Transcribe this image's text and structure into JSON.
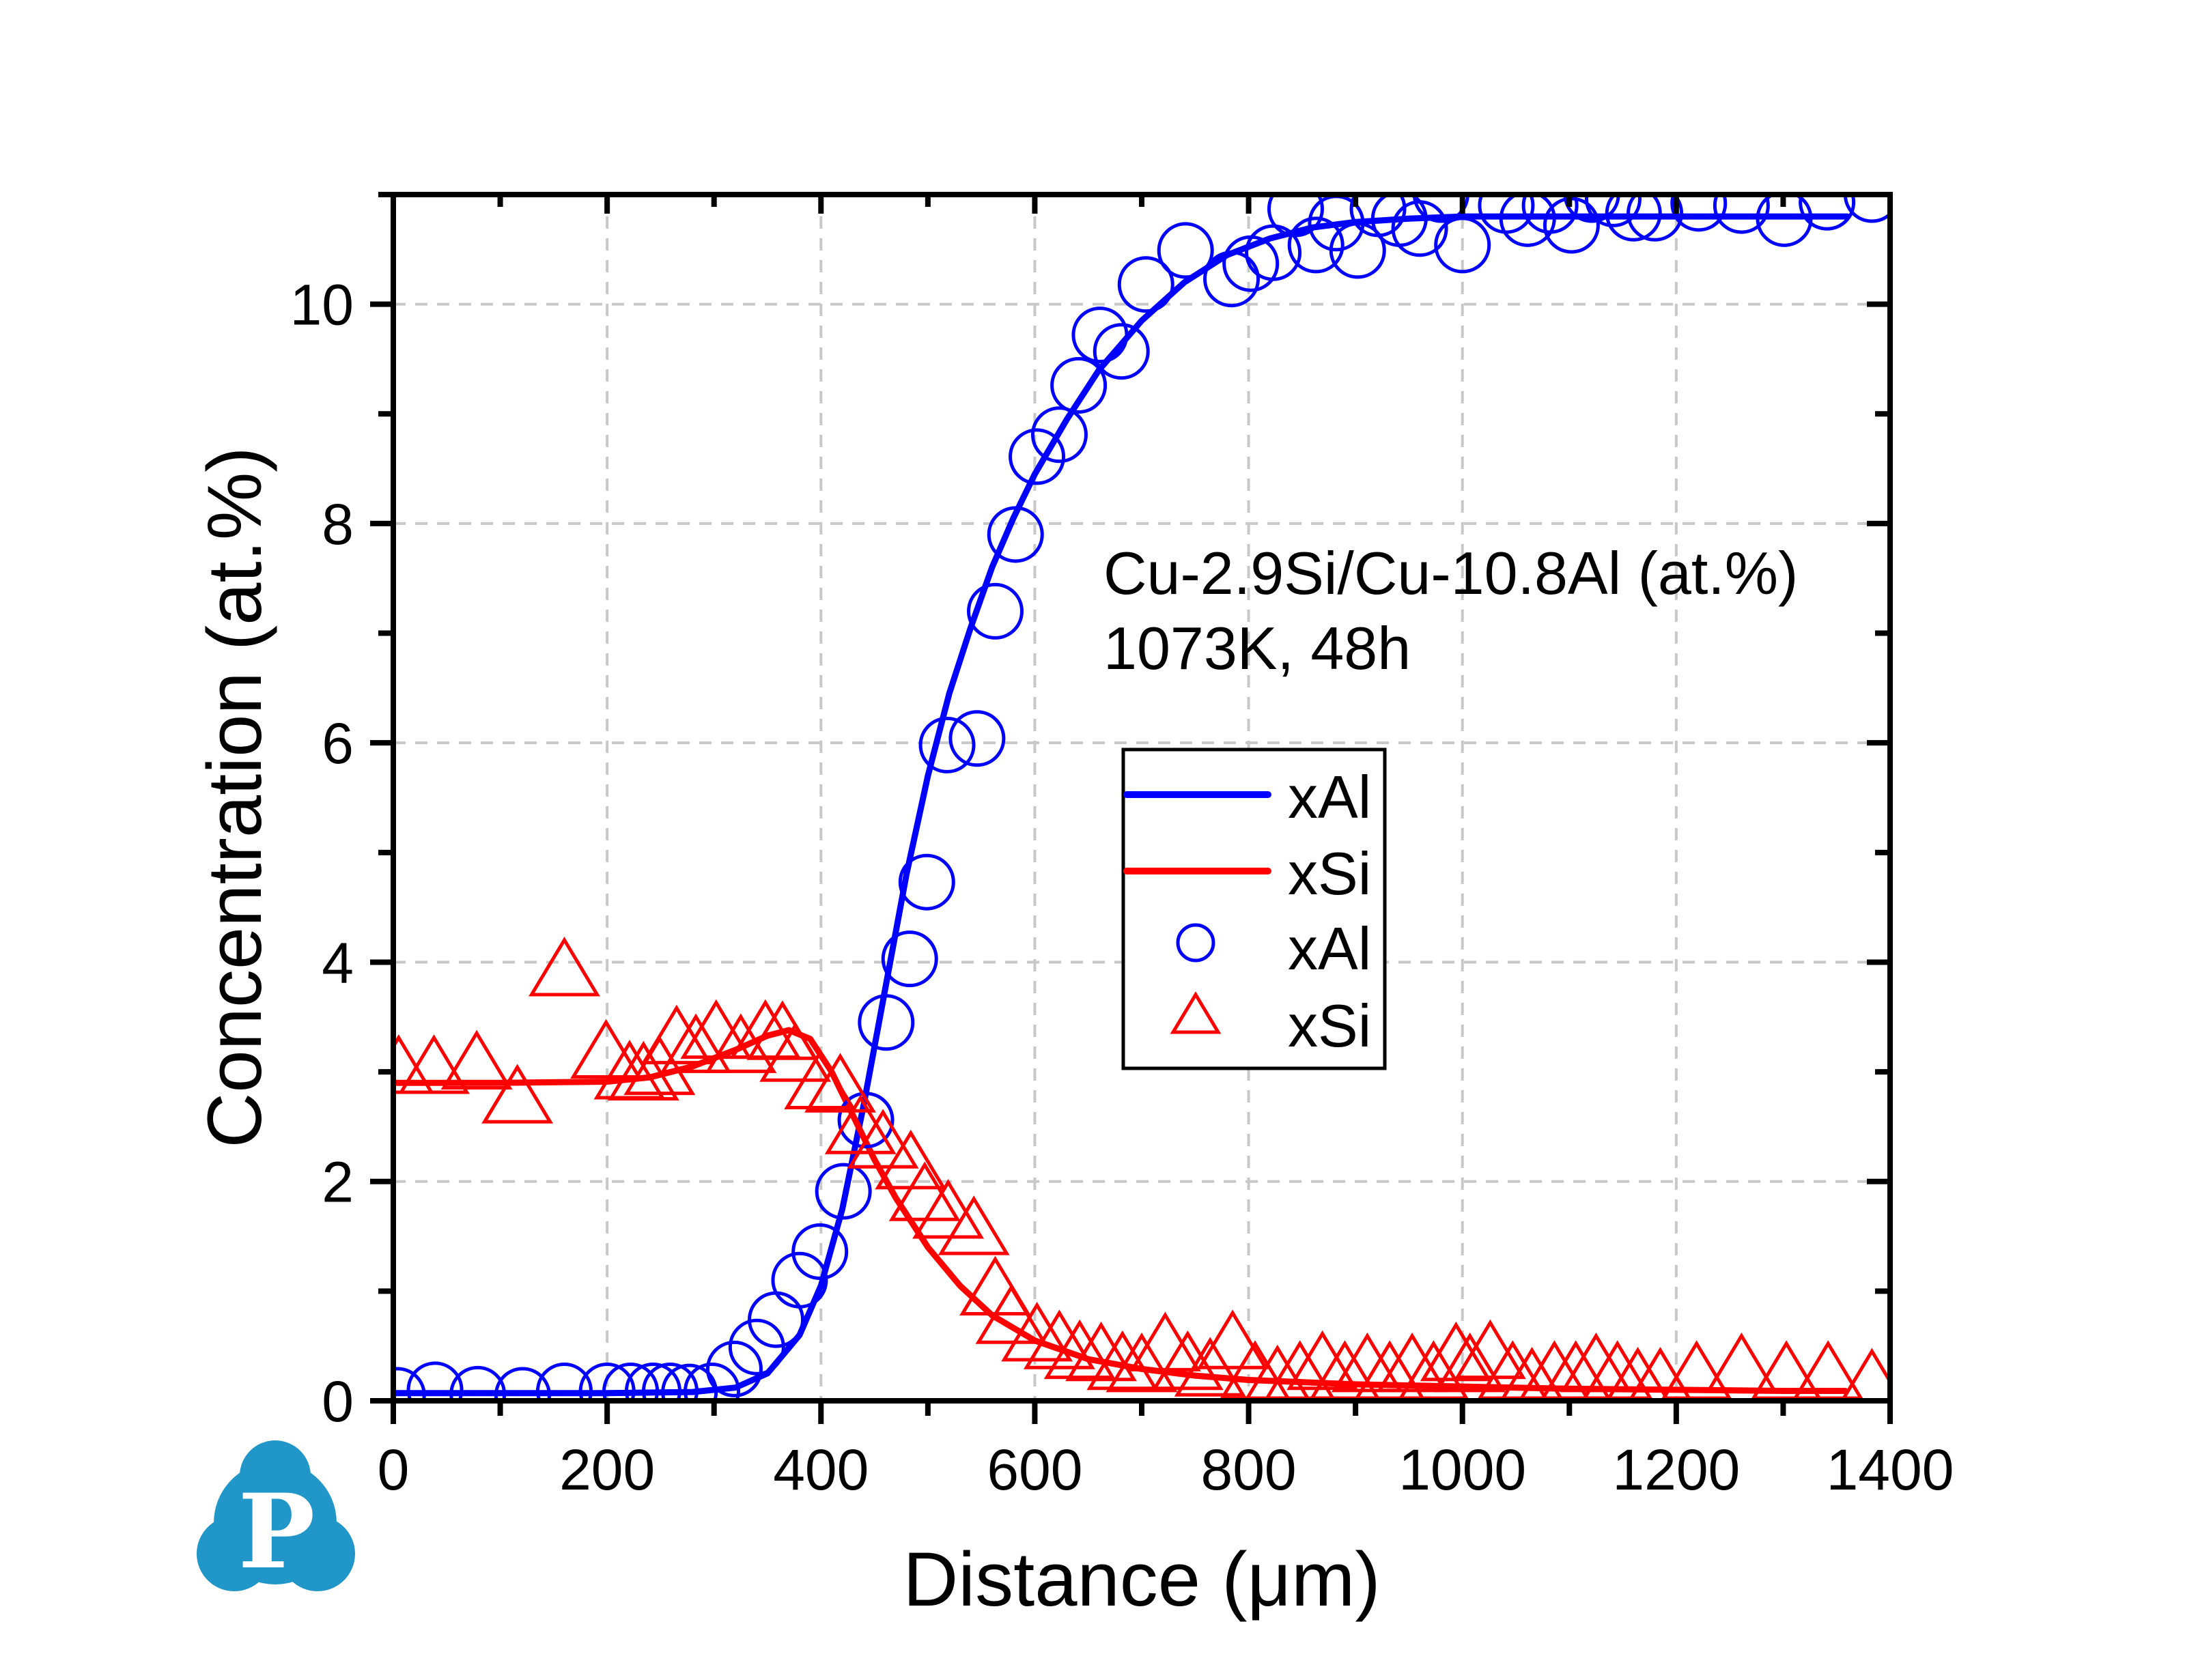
{
  "chart_data": {
    "type": "scatter",
    "title": "",
    "xlabel": "Distance (μm)",
    "ylabel": "Concentration (at.%)",
    "xlim": [
      0,
      1400
    ],
    "ylim": [
      0,
      11
    ],
    "x_major_ticks": [
      0,
      200,
      400,
      600,
      800,
      1000,
      1200,
      1400
    ],
    "x_minor_step": 100,
    "y_major_ticks": [
      0,
      2,
      4,
      6,
      8,
      10
    ],
    "y_minor_step": 1,
    "x_tick_labels": [
      "0",
      "200",
      "400",
      "600",
      "800",
      "1000",
      "1200",
      "1400"
    ],
    "y_tick_labels": [
      "0",
      "2",
      "4",
      "6",
      "8",
      "10"
    ],
    "grid": true,
    "legend_placement": "center-right",
    "annotation": [
      "Cu-2.9Si/Cu-10.8Al (at.%)",
      "1073K, 48h"
    ],
    "series": [
      {
        "name": "xAl",
        "kind": "line",
        "color": "#0000ff",
        "x": [
          0,
          100,
          200,
          280,
          320,
          350,
          380,
          400,
          420,
          440,
          460,
          480,
          500,
          520,
          540,
          560,
          580,
          600,
          630,
          660,
          700,
          740,
          780,
          820,
          860,
          900,
          950,
          1000,
          1100,
          1200,
          1300,
          1360
        ],
        "y": [
          0.07,
          0.07,
          0.07,
          0.08,
          0.12,
          0.25,
          0.6,
          1.05,
          1.75,
          2.7,
          3.75,
          4.8,
          5.7,
          6.45,
          7.05,
          7.6,
          8.05,
          8.45,
          8.95,
          9.4,
          9.85,
          10.2,
          10.45,
          10.6,
          10.7,
          10.75,
          10.78,
          10.8,
          10.8,
          10.8,
          10.8,
          10.8
        ]
      },
      {
        "name": "xSi",
        "kind": "line",
        "color": "#ff0000",
        "x": [
          0,
          100,
          200,
          240,
          280,
          320,
          350,
          370,
          390,
          410,
          430,
          450,
          470,
          500,
          530,
          560,
          600,
          650,
          700,
          750,
          800,
          900,
          1000,
          1100,
          1200,
          1300,
          1358
        ],
        "y": [
          2.9,
          2.9,
          2.91,
          2.95,
          3.05,
          3.2,
          3.33,
          3.38,
          3.3,
          3.0,
          2.6,
          2.2,
          1.85,
          1.4,
          1.05,
          0.78,
          0.55,
          0.38,
          0.29,
          0.23,
          0.19,
          0.15,
          0.13,
          0.11,
          0.1,
          0.09,
          0.09
        ]
      },
      {
        "name": "xAl",
        "kind": "scatter",
        "marker": "circle",
        "color": "#0000ff",
        "x": [
          4,
          39,
          79,
          121,
          160,
          200,
          222,
          243,
          259,
          277,
          298,
          319,
          340,
          358,
          380,
          399,
          421,
          442,
          461,
          483,
          499,
          518,
          546,
          563,
          582,
          602,
          623,
          641,
          661,
          681,
          704,
          741,
          784,
          802,
          823,
          844,
          863,
          882,
          902,
          921,
          941,
          960,
          980,
          1000,
          1041,
          1061,
          1082,
          1102,
          1121,
          1141,
          1160,
          1180,
          1221,
          1261,
          1301,
          1341,
          1383
        ],
        "y": [
          0.05,
          0.1,
          0.06,
          0.05,
          0.09,
          0.09,
          0.09,
          0.09,
          0.09,
          0.08,
          0.09,
          0.29,
          0.49,
          0.74,
          1.1,
          1.36,
          1.91,
          2.56,
          3.45,
          4.03,
          4.73,
          5.98,
          6.04,
          7.2,
          7.9,
          8.61,
          8.81,
          9.26,
          9.72,
          9.57,
          10.18,
          10.49,
          10.23,
          10.37,
          10.47,
          10.87,
          10.54,
          10.74,
          10.49,
          10.87,
          10.78,
          10.69,
          11.0,
          10.54,
          10.9,
          10.78,
          10.9,
          10.72,
          11.0,
          10.96,
          10.83,
          10.83,
          10.92,
          10.9,
          10.78,
          10.93,
          11.0
        ]
      },
      {
        "name": "xSi",
        "kind": "scatter",
        "marker": "triangle",
        "color": "#ff0000",
        "x": [
          5,
          38,
          78,
          116,
          160,
          199,
          221,
          234,
          249,
          265,
          283,
          302,
          325,
          348,
          364,
          376,
          399,
          418,
          437,
          458,
          484,
          497,
          519,
          543,
          563,
          578,
          602,
          623,
          642,
          662,
          682,
          700,
          722,
          743,
          764,
          785,
          806,
          827,
          848,
          869,
          890,
          911,
          932,
          953,
          973,
          994,
          1007,
          1026,
          1047,
          1065,
          1086,
          1106,
          1125,
          1145,
          1164,
          1185,
          1219,
          1261,
          1303,
          1342,
          1383
        ],
        "y": [
          2.98,
          2.98,
          3.02,
          2.71,
          3.87,
          3.12,
          2.93,
          2.92,
          2.97,
          3.25,
          3.17,
          3.3,
          3.17,
          3.3,
          3.29,
          3.09,
          2.84,
          2.81,
          2.43,
          2.3,
          2.11,
          1.82,
          1.66,
          1.51,
          0.96,
          0.7,
          0.54,
          0.47,
          0.38,
          0.36,
          0.28,
          0.26,
          0.45,
          0.28,
          0.22,
          0.47,
          0.19,
          0.15,
          0.19,
          0.28,
          0.19,
          0.26,
          0.19,
          0.26,
          0.19,
          0.36,
          0.26,
          0.38,
          0.19,
          0.13,
          0.19,
          0.19,
          0.26,
          0.19,
          0.13,
          0.13,
          0.19,
          0.26,
          0.19,
          0.19,
          0.12
        ]
      }
    ]
  },
  "legend": {
    "entries": [
      {
        "label": "xAl",
        "kind": "line",
        "color": "#0000ff"
      },
      {
        "label": "xSi",
        "kind": "line",
        "color": "#ff0000"
      },
      {
        "label": "xAl",
        "kind": "circle",
        "color": "#0000ff"
      },
      {
        "label": "xSi",
        "kind": "triangle",
        "color": "#ff0000"
      }
    ]
  },
  "logo": {
    "letter": "P",
    "color": "#2196c8",
    "icon": "cloud-p-logo"
  }
}
